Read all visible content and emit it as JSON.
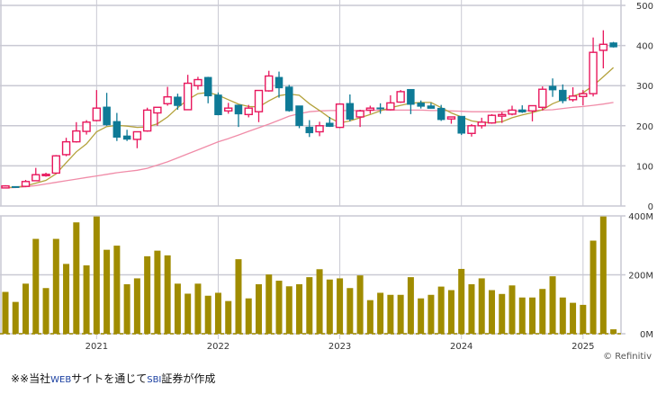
{
  "chart_data": {
    "type": "candlestick",
    "period": "monthly",
    "price_axis": {
      "ticks": [
        "500",
        "400",
        "300",
        "200",
        "100",
        "0"
      ],
      "ylim": [
        0,
        500
      ]
    },
    "volume_axis": {
      "ticks": [
        "400M",
        "200M",
        "0M"
      ],
      "ylim": [
        0,
        400
      ]
    },
    "x_ticks": [
      "2021",
      "2022",
      "2023",
      "2024",
      "2025"
    ],
    "months_before_first_tick": 9,
    "colors": {
      "up": "#e8175d",
      "down": "#0e7a96",
      "volume": "#a08c00",
      "ma_short": "#b4a23c",
      "ma_long": "#f08ca8",
      "grid": "#c9c9d3"
    },
    "ohlc": [
      [
        45,
        52,
        44,
        50
      ],
      [
        49,
        49,
        46,
        47
      ],
      [
        49,
        65,
        47,
        61
      ],
      [
        63,
        95,
        62,
        78
      ],
      [
        77,
        83,
        73,
        79
      ],
      [
        82,
        127,
        80,
        125
      ],
      [
        128,
        170,
        124,
        160
      ],
      [
        160,
        209,
        158,
        187
      ],
      [
        186,
        214,
        178,
        209
      ],
      [
        213,
        289,
        211,
        244
      ],
      [
        247,
        282,
        200,
        202
      ],
      [
        211,
        232,
        162,
        171
      ],
      [
        175,
        190,
        162,
        166
      ],
      [
        166,
        186,
        144,
        185
      ],
      [
        187,
        245,
        185,
        239
      ],
      [
        232,
        246,
        200,
        246
      ],
      [
        255,
        297,
        250,
        272
      ],
      [
        272,
        280,
        240,
        250
      ],
      [
        240,
        327,
        239,
        306
      ],
      [
        300,
        322,
        290,
        315
      ],
      [
        321,
        322,
        256,
        274
      ],
      [
        277,
        283,
        226,
        227
      ],
      [
        237,
        257,
        230,
        244
      ],
      [
        252,
        252,
        197,
        229
      ],
      [
        228,
        252,
        221,
        244
      ],
      [
        235,
        288,
        209,
        288
      ],
      [
        287,
        337,
        285,
        324
      ],
      [
        321,
        335,
        270,
        294
      ],
      [
        297,
        302,
        235,
        237
      ],
      [
        250,
        250,
        194,
        200
      ],
      [
        197,
        214,
        172,
        182
      ],
      [
        185,
        210,
        174,
        200
      ],
      [
        207,
        222,
        197,
        198
      ],
      [
        196,
        256,
        194,
        254
      ],
      [
        256,
        278,
        211,
        216
      ],
      [
        222,
        240,
        197,
        237
      ],
      [
        239,
        250,
        230,
        244
      ],
      [
        245,
        256,
        230,
        243
      ],
      [
        240,
        276,
        238,
        257
      ],
      [
        259,
        289,
        257,
        285
      ],
      [
        291,
        291,
        229,
        253
      ],
      [
        257,
        263,
        243,
        248
      ],
      [
        250,
        257,
        243,
        243
      ],
      [
        244,
        252,
        212,
        215
      ],
      [
        217,
        222,
        205,
        222
      ],
      [
        224,
        224,
        177,
        181
      ],
      [
        181,
        204,
        173,
        200
      ],
      [
        200,
        220,
        193,
        209
      ],
      [
        207,
        229,
        205,
        226
      ],
      [
        224,
        234,
        207,
        228
      ],
      [
        229,
        250,
        226,
        239
      ],
      [
        240,
        251,
        232,
        234
      ],
      [
        237,
        250,
        211,
        250
      ],
      [
        246,
        298,
        238,
        291
      ],
      [
        299,
        318,
        272,
        289
      ],
      [
        289,
        303,
        256,
        262
      ],
      [
        265,
        296,
        260,
        274
      ],
      [
        273,
        289,
        251,
        280
      ],
      [
        280,
        420,
        273,
        383
      ],
      [
        388,
        438,
        343,
        403
      ],
      [
        407,
        409,
        395,
        396
      ]
    ],
    "ma_short": [
      46,
      47,
      50,
      57,
      64,
      80,
      108,
      135,
      155,
      185,
      198,
      201,
      199,
      196,
      197,
      205,
      222,
      245,
      265,
      280,
      283,
      276,
      265,
      254,
      248,
      247,
      262,
      275,
      279,
      276,
      255,
      238,
      220,
      207,
      212,
      220,
      228,
      237,
      245,
      251,
      256,
      258,
      258,
      245,
      232,
      222,
      212,
      208,
      208,
      210,
      220,
      227,
      233,
      240,
      255,
      265,
      274,
      282,
      300,
      322,
      345
    ],
    "ma_long": [
      45,
      46,
      48,
      51,
      55,
      59,
      63,
      67,
      71,
      75,
      79,
      83,
      86,
      89,
      94,
      102,
      110,
      120,
      130,
      140,
      150,
      160,
      168,
      177,
      186,
      195,
      204,
      214,
      224,
      230,
      235,
      237,
      238,
      238,
      238,
      238,
      238,
      239,
      239,
      239,
      239,
      239,
      238,
      238,
      237,
      236,
      235,
      235,
      235,
      235,
      236,
      237,
      238,
      239,
      240,
      243,
      246,
      248,
      251,
      254,
      258
    ],
    "volume_millions": [
      142,
      108,
      170,
      322,
      155,
      322,
      237,
      378,
      232,
      398,
      285,
      299,
      168,
      188,
      263,
      282,
      266,
      170,
      136,
      170,
      129,
      139,
      111,
      253,
      120,
      168,
      201,
      180,
      161,
      168,
      192,
      219,
      184,
      188,
      155,
      198,
      114,
      139,
      132,
      132,
      192,
      120,
      132,
      160,
      148,
      220,
      168,
      188,
      148,
      135,
      164,
      123,
      123,
      152,
      195,
      123,
      105,
      98,
      316,
      398,
      15
    ]
  },
  "footer": {
    "prefix": "※※当社",
    "web": "WEB",
    "middle": "サイトを通じて",
    "sbi": "SBI",
    "suffix": "証券が作成"
  },
  "credit": "© Refinitiv"
}
